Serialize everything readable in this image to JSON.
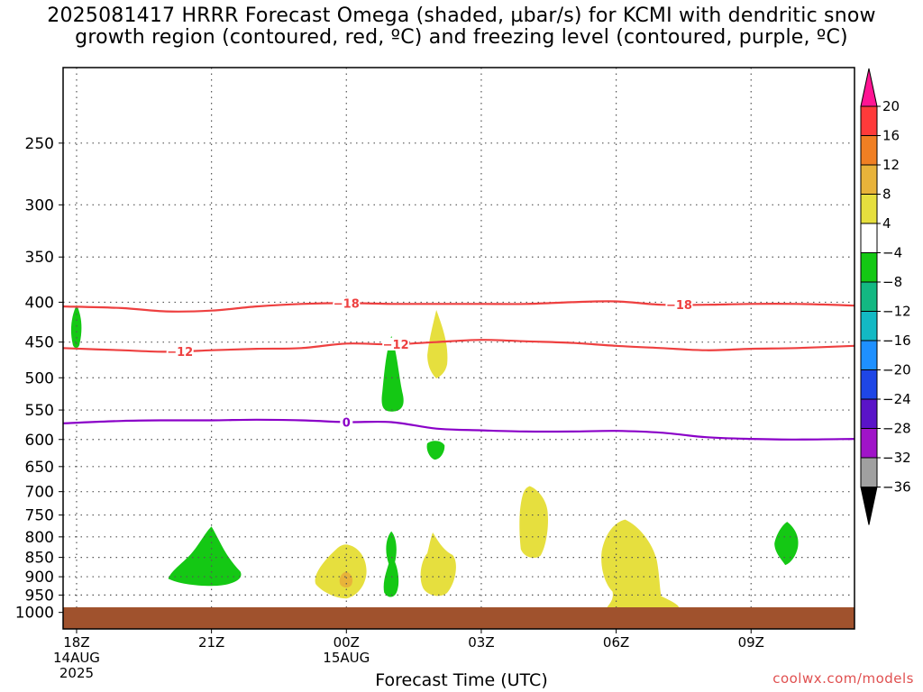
{
  "title": {
    "line1": "2025081417 HRRR Forecast Omega (shaded, µbar/s) for KCMI with dendritic snow",
    "line2": "growth region (contoured, red, ºC) and freezing level (contoured, purple, ºC)"
  },
  "xlabel": "Forecast Time (UTC)",
  "credit": "coolwx.com/models",
  "chart_data": {
    "type": "time-height cross section",
    "x_axis": {
      "label": "Forecast Time (UTC)",
      "range_hours_from_18Z": [
        -0.3,
        17.3
      ],
      "ticks": [
        {
          "hour": 0,
          "lines": [
            "18Z",
            "14AUG",
            "2025"
          ]
        },
        {
          "hour": 3,
          "lines": [
            "21Z"
          ]
        },
        {
          "hour": 6,
          "lines": [
            "00Z",
            "15AUG"
          ]
        },
        {
          "hour": 9,
          "lines": [
            "03Z"
          ]
        },
        {
          "hour": 12,
          "lines": [
            "06Z"
          ]
        },
        {
          "hour": 15,
          "lines": [
            "09Z"
          ]
        }
      ]
    },
    "y_axis": {
      "unit": "hPa",
      "scale": "log",
      "range": [
        1050,
        200
      ],
      "ticks": [
        250,
        300,
        350,
        400,
        450,
        500,
        550,
        600,
        650,
        700,
        750,
        800,
        850,
        900,
        950,
        1000
      ]
    },
    "grid": true,
    "ground_level_hpa": 985,
    "colorbar": {
      "label_unit": "µbar/s",
      "levels": [
        "20",
        "16",
        "12",
        "8",
        "4",
        "−4",
        "−8",
        "−12",
        "−16",
        "−20",
        "−24",
        "−28",
        "−32",
        "−36"
      ],
      "colors": [
        "#ff1493",
        "#ff3a3a",
        "#f07f23",
        "#e8b33a",
        "#e6df3e",
        "#ffffff",
        "#14c814",
        "#13b882",
        "#13b9c4",
        "#1e90ff",
        "#1e46e6",
        "#5a14c8",
        "#a014c8",
        "#a0a0a0",
        "#000000"
      ]
    },
    "contours": [
      {
        "name": "-18",
        "color": "#ee4040",
        "points": [
          [
            -0.3,
            405
          ],
          [
            1,
            407
          ],
          [
            2,
            411
          ],
          [
            3,
            410
          ],
          [
            4,
            405
          ],
          [
            5,
            402
          ],
          [
            6,
            401
          ],
          [
            7,
            402
          ],
          [
            8,
            402
          ],
          [
            9,
            402
          ],
          [
            10,
            402
          ],
          [
            11,
            400
          ],
          [
            12,
            399
          ],
          [
            13,
            403
          ],
          [
            14,
            403
          ],
          [
            15,
            402
          ],
          [
            16,
            402
          ],
          [
            17.3,
            404
          ]
        ]
      },
      {
        "name": "-12",
        "color": "#ee4040",
        "points": [
          [
            -0.3,
            458
          ],
          [
            1,
            461
          ],
          [
            2,
            463
          ],
          [
            3,
            461
          ],
          [
            4,
            459
          ],
          [
            5,
            458
          ],
          [
            6,
            452
          ],
          [
            7,
            453
          ],
          [
            8,
            450
          ],
          [
            9,
            447
          ],
          [
            10,
            449
          ],
          [
            11,
            451
          ],
          [
            12,
            455
          ],
          [
            13,
            458
          ],
          [
            14,
            461
          ],
          [
            15,
            459
          ],
          [
            16,
            458
          ],
          [
            17.3,
            455
          ]
        ]
      },
      {
        "name": "0",
        "color": "#8a00c8",
        "points": [
          [
            -0.3,
            572
          ],
          [
            1,
            568
          ],
          [
            2,
            567
          ],
          [
            3,
            567
          ],
          [
            4,
            566
          ],
          [
            5,
            567
          ],
          [
            6,
            570
          ],
          [
            7,
            570
          ],
          [
            8,
            581
          ],
          [
            9,
            584
          ],
          [
            10,
            586
          ],
          [
            11,
            586
          ],
          [
            12,
            585
          ],
          [
            13,
            588
          ],
          [
            14,
            596
          ],
          [
            15,
            599
          ],
          [
            16,
            600
          ],
          [
            17.3,
            599
          ]
        ]
      }
    ],
    "shaded_regions": [
      {
        "range": "-8 to -4",
        "color": "#14c814",
        "center": [
          0,
          440
        ]
      },
      {
        "range": "-8 to -4",
        "color": "#14c814",
        "center": [
          3,
          905
        ]
      },
      {
        "range": "-8 to -4",
        "color": "#14c814",
        "center": [
          7,
          535
        ]
      },
      {
        "range": "-8 to -4",
        "color": "#14c814",
        "center": [
          7,
          880
        ]
      },
      {
        "range": "-8 to -4",
        "color": "#14c814",
        "center": [
          8,
          620
        ]
      },
      {
        "range": "-8 to -4",
        "color": "#14c814",
        "center": [
          15.8,
          820
        ]
      },
      {
        "range": "4 to 8",
        "color": "#e6df3e",
        "center": [
          8,
          470
        ]
      },
      {
        "range": "4 to 8",
        "color": "#e6df3e",
        "center": [
          6,
          905
        ]
      },
      {
        "range": "4 to 8",
        "color": "#e6df3e",
        "center": [
          8,
          890
        ]
      },
      {
        "range": "4 to 8",
        "color": "#e6df3e",
        "center": [
          10.2,
          770
        ]
      },
      {
        "range": "4 to 8",
        "color": "#e6df3e",
        "center": [
          12.2,
          880
        ]
      },
      {
        "range": "8 to 12",
        "color": "#e8b33a",
        "center": [
          6,
          910
        ]
      }
    ]
  }
}
